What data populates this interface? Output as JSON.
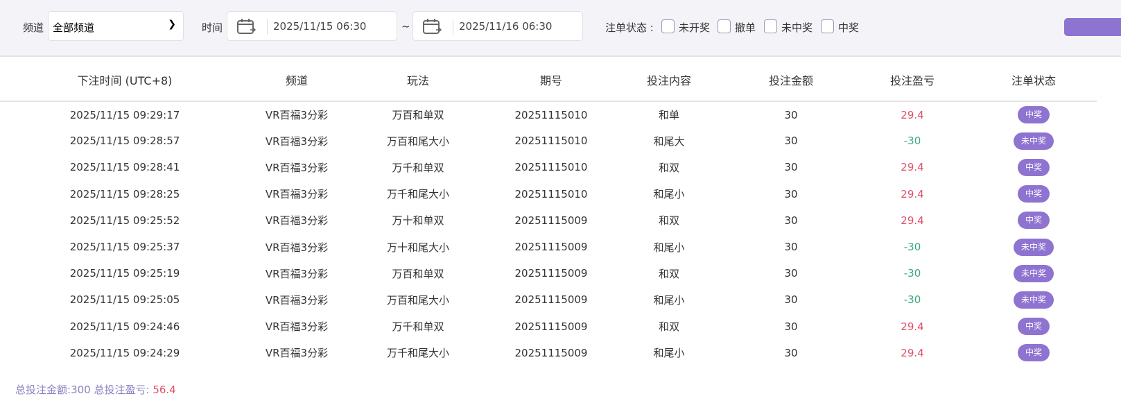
{
  "filters": {
    "channel_label": "频道",
    "channel_value": "全部频道",
    "time_label": "时间",
    "start": "2025/11/15 06:30",
    "tilde": "~",
    "end": "2025/11/16 06:30",
    "status_label": "注单状态 :",
    "status_options": [
      "未开奖",
      "撤单",
      "未中奖",
      "中奖"
    ]
  },
  "columns": [
    "下注时间 (UTC+8)",
    "频道",
    "玩法",
    "期号",
    "投注内容",
    "投注金额",
    "投注盈亏",
    "注单状态"
  ],
  "rows": [
    [
      "2025/11/15 09:29:17",
      "VR百福3分彩",
      "万百和单双",
      "20251115010",
      "和单",
      "30",
      "29.4",
      "中奖"
    ],
    [
      "2025/11/15 09:28:57",
      "VR百福3分彩",
      "万百和尾大小",
      "20251115010",
      "和尾大",
      "30",
      "-30",
      "未中奖"
    ],
    [
      "2025/11/15 09:28:41",
      "VR百福3分彩",
      "万千和单双",
      "20251115010",
      "和双",
      "30",
      "29.4",
      "中奖"
    ],
    [
      "2025/11/15 09:28:25",
      "VR百福3分彩",
      "万千和尾大小",
      "20251115010",
      "和尾小",
      "30",
      "29.4",
      "中奖"
    ],
    [
      "2025/11/15 09:25:52",
      "VR百福3分彩",
      "万十和单双",
      "20251115009",
      "和双",
      "30",
      "29.4",
      "中奖"
    ],
    [
      "2025/11/15 09:25:37",
      "VR百福3分彩",
      "万十和尾大小",
      "20251115009",
      "和尾小",
      "30",
      "-30",
      "未中奖"
    ],
    [
      "2025/11/15 09:25:19",
      "VR百福3分彩",
      "万百和单双",
      "20251115009",
      "和双",
      "30",
      "-30",
      "未中奖"
    ],
    [
      "2025/11/15 09:25:05",
      "VR百福3分彩",
      "万百和尾大小",
      "20251115009",
      "和尾小",
      "30",
      "-30",
      "未中奖"
    ],
    [
      "2025/11/15 09:24:46",
      "VR百福3分彩",
      "万千和单双",
      "20251115009",
      "和双",
      "30",
      "29.4",
      "中奖"
    ],
    [
      "2025/11/15 09:24:29",
      "VR百福3分彩",
      "万千和尾大小",
      "20251115009",
      "和尾小",
      "30",
      "29.4",
      "中奖"
    ]
  ],
  "footer": {
    "total_bet_label": "总投注金额:",
    "total_bet": "300",
    "total_pl_label": "总投注盈亏:",
    "total_pl": "56.4"
  },
  "colors": {
    "accent": "#8e74d0",
    "profit": "#e0506a",
    "loss": "#3aa878"
  }
}
